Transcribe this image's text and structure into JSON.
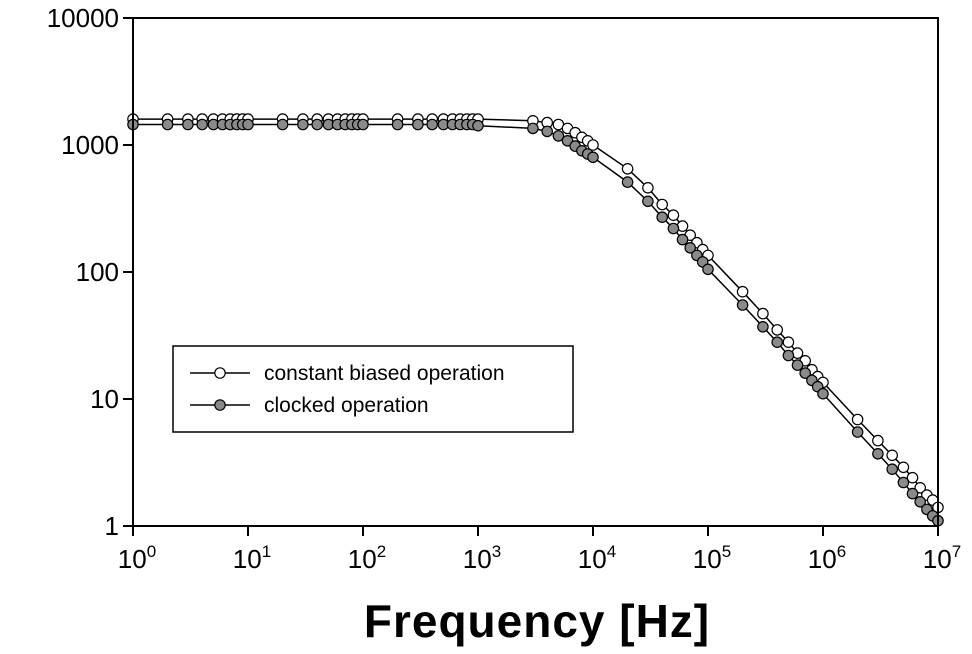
{
  "chart_data": {
    "type": "scatter",
    "title": "",
    "xlabel": "Frequency [Hz]",
    "ylabel": "",
    "x_scale": "log",
    "y_scale": "log",
    "xlim": [
      1,
      10000000
    ],
    "ylim": [
      1,
      10000
    ],
    "x_ticks": [
      {
        "base": "10",
        "exp": "0"
      },
      {
        "base": "10",
        "exp": "1"
      },
      {
        "base": "10",
        "exp": "2"
      },
      {
        "base": "10",
        "exp": "3"
      },
      {
        "base": "10",
        "exp": "4"
      },
      {
        "base": "10",
        "exp": "5"
      },
      {
        "base": "10",
        "exp": "6"
      },
      {
        "base": "10",
        "exp": "7"
      }
    ],
    "y_ticks": [
      "1",
      "10",
      "100",
      "1000",
      "10000"
    ],
    "grid": false,
    "legend_position": "center-left",
    "series": [
      {
        "name": "constant biased operation",
        "marker": "open-circle",
        "color": "#ffffff",
        "x": [
          1,
          2,
          3,
          4,
          5,
          6,
          7,
          8,
          9,
          10,
          20,
          30,
          40,
          50,
          60,
          70,
          80,
          90,
          100,
          200,
          300,
          400,
          500,
          600,
          700,
          800,
          900,
          1000,
          3000,
          4000,
          5000,
          6000,
          7000,
          8000,
          9000,
          10000,
          20000,
          30000,
          40000,
          50000,
          60000,
          70000,
          80000,
          90000,
          100000,
          200000,
          300000,
          400000,
          500000,
          600000,
          700000,
          800000,
          900000,
          1000000,
          2000000,
          3000000,
          4000000,
          5000000,
          6000000,
          7000000,
          8000000,
          9000000,
          10000000
        ],
        "y": [
          1600,
          1600,
          1600,
          1600,
          1600,
          1600,
          1600,
          1600,
          1600,
          1600,
          1600,
          1600,
          1600,
          1600,
          1600,
          1600,
          1600,
          1600,
          1600,
          1600,
          1600,
          1600,
          1600,
          1600,
          1600,
          1600,
          1600,
          1600,
          1550,
          1500,
          1450,
          1350,
          1250,
          1150,
          1080,
          1000,
          650,
          460,
          340,
          280,
          230,
          195,
          170,
          150,
          135,
          70,
          47,
          35,
          28,
          23,
          20,
          17,
          15,
          13.5,
          6.9,
          4.7,
          3.6,
          2.9,
          2.4,
          2.0,
          1.75,
          1.6,
          1.4
        ]
      },
      {
        "name": "clocked operation",
        "marker": "filled-circle",
        "color": "#8a8a8a",
        "x": [
          1,
          2,
          3,
          4,
          5,
          6,
          7,
          8,
          9,
          10,
          20,
          30,
          40,
          50,
          60,
          70,
          80,
          90,
          100,
          200,
          300,
          400,
          500,
          600,
          700,
          800,
          900,
          1000,
          3000,
          4000,
          5000,
          6000,
          7000,
          8000,
          9000,
          10000,
          20000,
          30000,
          40000,
          50000,
          60000,
          70000,
          80000,
          90000,
          100000,
          200000,
          300000,
          400000,
          500000,
          600000,
          700000,
          800000,
          900000,
          1000000,
          2000000,
          3000000,
          4000000,
          5000000,
          6000000,
          7000000,
          8000000,
          9000000,
          10000000
        ],
        "y": [
          1450,
          1450,
          1450,
          1450,
          1450,
          1450,
          1450,
          1450,
          1450,
          1450,
          1450,
          1450,
          1450,
          1450,
          1450,
          1450,
          1450,
          1450,
          1450,
          1450,
          1450,
          1450,
          1450,
          1450,
          1450,
          1450,
          1450,
          1420,
          1350,
          1280,
          1180,
          1080,
          980,
          900,
          850,
          800,
          510,
          360,
          270,
          220,
          180,
          155,
          135,
          120,
          105,
          55,
          37,
          28,
          22,
          18.5,
          16,
          14,
          12.5,
          11,
          5.5,
          3.7,
          2.8,
          2.2,
          1.8,
          1.55,
          1.35,
          1.2,
          1.1
        ]
      }
    ]
  }
}
